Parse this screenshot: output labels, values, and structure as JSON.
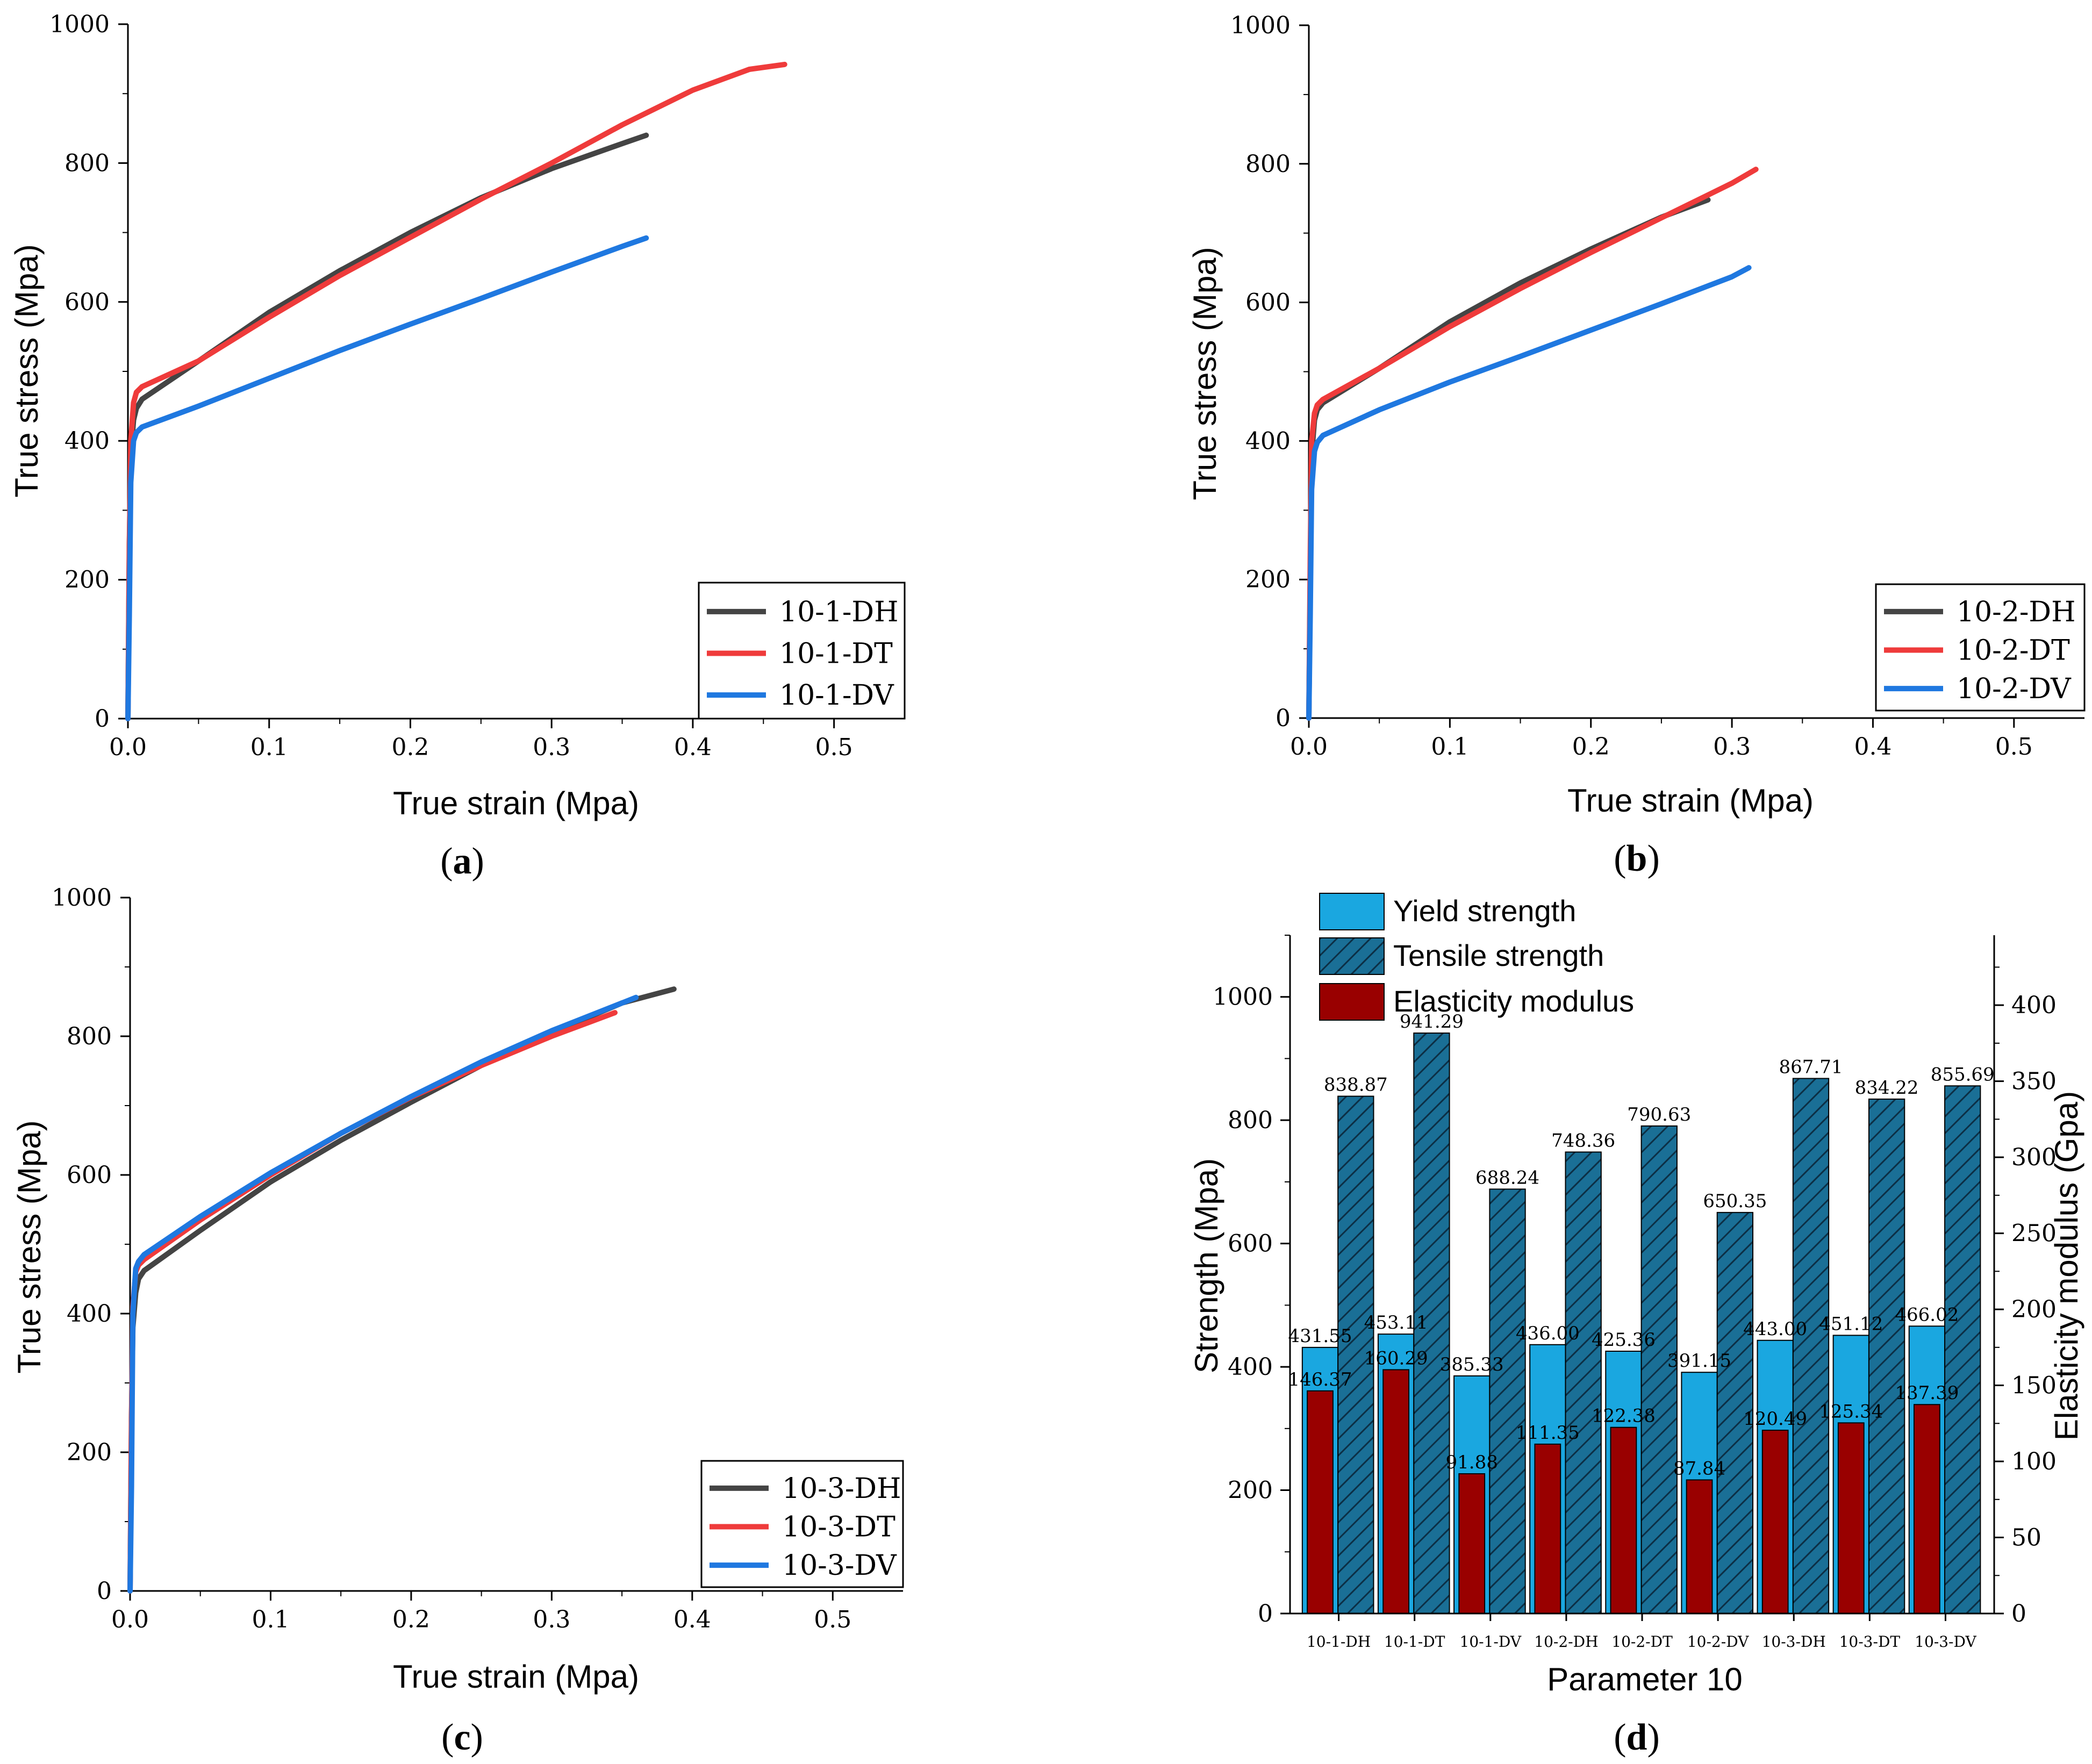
{
  "chart_data": [
    {
      "id": "a",
      "type": "line",
      "caption_label": "a",
      "xlabel": "True strain (Mpa)",
      "ylabel": "True stress (Mpa)",
      "xlim": [
        0,
        0.55
      ],
      "ylim": [
        0,
        1000
      ],
      "xticks": [
        0.0,
        0.1,
        0.2,
        0.3,
        0.4,
        0.5
      ],
      "xtick_labels": [
        "0.0",
        "0.1",
        "0.2",
        "0.3",
        "0.4",
        "0.5"
      ],
      "yticks": [
        0,
        200,
        400,
        600,
        800,
        1000
      ],
      "ytick_labels": [
        "0",
        "200",
        "400",
        "600",
        "800",
        "1000"
      ],
      "legend_position": "bottom-right",
      "series": [
        {
          "name": "10-1-DH",
          "color": "#444444",
          "x": [
            0,
            0.001,
            0.002,
            0.004,
            0.006,
            0.01,
            0.05,
            0.1,
            0.15,
            0.2,
            0.25,
            0.3,
            0.35,
            0.367
          ],
          "y": [
            0,
            250,
            380,
            430,
            447,
            460,
            515,
            585,
            645,
            700,
            750,
            792,
            828,
            840
          ]
        },
        {
          "name": "10-1-DT",
          "color": "#ef3b3b",
          "x": [
            0,
            0.001,
            0.002,
            0.004,
            0.006,
            0.01,
            0.05,
            0.1,
            0.15,
            0.2,
            0.25,
            0.3,
            0.35,
            0.4,
            0.44,
            0.465
          ],
          "y": [
            0,
            240,
            400,
            455,
            470,
            478,
            515,
            578,
            638,
            693,
            748,
            800,
            855,
            905,
            935,
            942
          ]
        },
        {
          "name": "10-1-DV",
          "color": "#1f78e0",
          "x": [
            0,
            0.001,
            0.002,
            0.004,
            0.006,
            0.01,
            0.05,
            0.1,
            0.15,
            0.2,
            0.25,
            0.3,
            0.35,
            0.367
          ],
          "y": [
            0,
            150,
            340,
            400,
            412,
            420,
            450,
            490,
            530,
            568,
            605,
            643,
            680,
            692
          ]
        }
      ]
    },
    {
      "id": "b",
      "type": "line",
      "caption_label": "b",
      "xlabel": "True strain (Mpa)",
      "ylabel": "True stress (Mpa)",
      "xlim": [
        0,
        0.55
      ],
      "ylim": [
        0,
        1000
      ],
      "xticks": [
        0.0,
        0.1,
        0.2,
        0.3,
        0.4,
        0.5
      ],
      "xtick_labels": [
        "0.0",
        "0.1",
        "0.2",
        "0.3",
        "0.4",
        "0.5"
      ],
      "yticks": [
        0,
        200,
        400,
        600,
        800,
        1000
      ],
      "ytick_labels": [
        "0",
        "200",
        "400",
        "600",
        "800",
        "1000"
      ],
      "legend_position": "bottom-right",
      "series": [
        {
          "name": "10-2-DH",
          "color": "#444444",
          "x": [
            0,
            0.001,
            0.002,
            0.004,
            0.006,
            0.01,
            0.05,
            0.1,
            0.15,
            0.2,
            0.25,
            0.283
          ],
          "y": [
            0,
            200,
            380,
            430,
            445,
            455,
            505,
            572,
            628,
            677,
            723,
            748
          ]
        },
        {
          "name": "10-2-DT",
          "color": "#ef3b3b",
          "x": [
            0,
            0.001,
            0.002,
            0.004,
            0.006,
            0.01,
            0.05,
            0.1,
            0.15,
            0.2,
            0.25,
            0.3,
            0.317
          ],
          "y": [
            0,
            230,
            400,
            440,
            452,
            460,
            505,
            565,
            620,
            672,
            722,
            772,
            792
          ]
        },
        {
          "name": "10-2-DV",
          "color": "#1f78e0",
          "x": [
            0,
            0.001,
            0.002,
            0.004,
            0.006,
            0.01,
            0.05,
            0.1,
            0.15,
            0.2,
            0.25,
            0.3,
            0.312
          ],
          "y": [
            0,
            150,
            330,
            385,
            398,
            408,
            445,
            485,
            522,
            560,
            598,
            637,
            650
          ]
        }
      ]
    },
    {
      "id": "c",
      "type": "line",
      "caption_label": "c",
      "xlabel": "True strain (Mpa)",
      "ylabel": "True stress (Mpa)",
      "xlim": [
        0,
        0.55
      ],
      "ylim": [
        0,
        1000
      ],
      "xticks": [
        0.0,
        0.1,
        0.2,
        0.3,
        0.4,
        0.5
      ],
      "xtick_labels": [
        "0.0",
        "0.1",
        "0.2",
        "0.3",
        "0.4",
        "0.5"
      ],
      "yticks": [
        0,
        200,
        400,
        600,
        800,
        1000
      ],
      "ytick_labels": [
        "0",
        "200",
        "400",
        "600",
        "800",
        "1000"
      ],
      "legend_position": "bottom-right",
      "series": [
        {
          "name": "10-3-DH",
          "color": "#444444",
          "x": [
            0,
            0.001,
            0.002,
            0.004,
            0.006,
            0.01,
            0.05,
            0.1,
            0.15,
            0.2,
            0.25,
            0.3,
            0.35,
            0.387
          ],
          "y": [
            0,
            250,
            380,
            430,
            450,
            462,
            520,
            590,
            650,
            705,
            758,
            805,
            848,
            868
          ]
        },
        {
          "name": "10-3-DT",
          "color": "#ef3b3b",
          "x": [
            0,
            0.001,
            0.002,
            0.004,
            0.006,
            0.01,
            0.05,
            0.1,
            0.15,
            0.2,
            0.25,
            0.3,
            0.345
          ],
          "y": [
            0,
            240,
            410,
            460,
            470,
            478,
            535,
            600,
            660,
            712,
            758,
            800,
            834
          ]
        },
        {
          "name": "10-3-DV",
          "color": "#1f78e0",
          "x": [
            0,
            0.001,
            0.002,
            0.004,
            0.006,
            0.01,
            0.05,
            0.1,
            0.15,
            0.2,
            0.25,
            0.3,
            0.35,
            0.36
          ],
          "y": [
            0,
            150,
            400,
            465,
            475,
            485,
            540,
            603,
            660,
            713,
            763,
            808,
            848,
            856
          ]
        }
      ]
    },
    {
      "id": "d",
      "type": "bar",
      "caption_label": "d",
      "xlabel": "Parameter 10",
      "ylabel": "Strength (Mpa)",
      "ylabel_right": "Elasticity modulus (Gpa)",
      "ylim": [
        0,
        1100
      ],
      "ylim_right": [
        0,
        446
      ],
      "yticks": [
        0,
        200,
        400,
        600,
        800,
        1000
      ],
      "ytick_labels": [
        "0",
        "200",
        "400",
        "600",
        "800",
        "1000"
      ],
      "yticks_right": [
        0,
        50,
        100,
        150,
        200,
        250,
        300,
        350,
        400
      ],
      "ytick_labels_right": [
        "0",
        "50",
        "100",
        "150",
        "200",
        "250",
        "300",
        "350",
        "400"
      ],
      "legend_position": "top-left",
      "categories": [
        "10-1-DH",
        "10-1-DT",
        "10-1-DV",
        "10-2-DH",
        "10-2-DT",
        "10-2-DV",
        "10-3-DH",
        "10-3-DT",
        "10-3-DV"
      ],
      "series": [
        {
          "name": "Yield strength",
          "color": "#1aa7e0",
          "axis": "left",
          "values": [
            431.55,
            453.11,
            385.33,
            436.0,
            425.36,
            391.15,
            443.0,
            451.12,
            466.02
          ],
          "labels": [
            "431.55",
            "453.11",
            "385.33",
            "436.00",
            "425.36",
            "391.15",
            "443.00",
            "451.12",
            "466.02"
          ]
        },
        {
          "name": "Tensile strength",
          "color": "#1a6f96",
          "axis": "left",
          "values": [
            838.87,
            941.29,
            688.24,
            748.36,
            790.63,
            650.35,
            867.71,
            834.22,
            855.69
          ],
          "labels": [
            "838.87",
            "941.29",
            "688.24",
            "748.36",
            "790.63",
            "650.35",
            "867.71",
            "834.22",
            "855.69"
          ]
        },
        {
          "name": "Elasticity modulus",
          "color": "#990000",
          "axis": "right",
          "values": [
            146.37,
            160.29,
            91.88,
            111.35,
            122.38,
            87.84,
            120.49,
            125.34,
            137.39
          ],
          "labels": [
            "146.37",
            "160.29",
            "91.88",
            "111.35",
            "122.38",
            "87.84",
            "120.49",
            "125.34",
            "137.39"
          ]
        }
      ]
    }
  ]
}
